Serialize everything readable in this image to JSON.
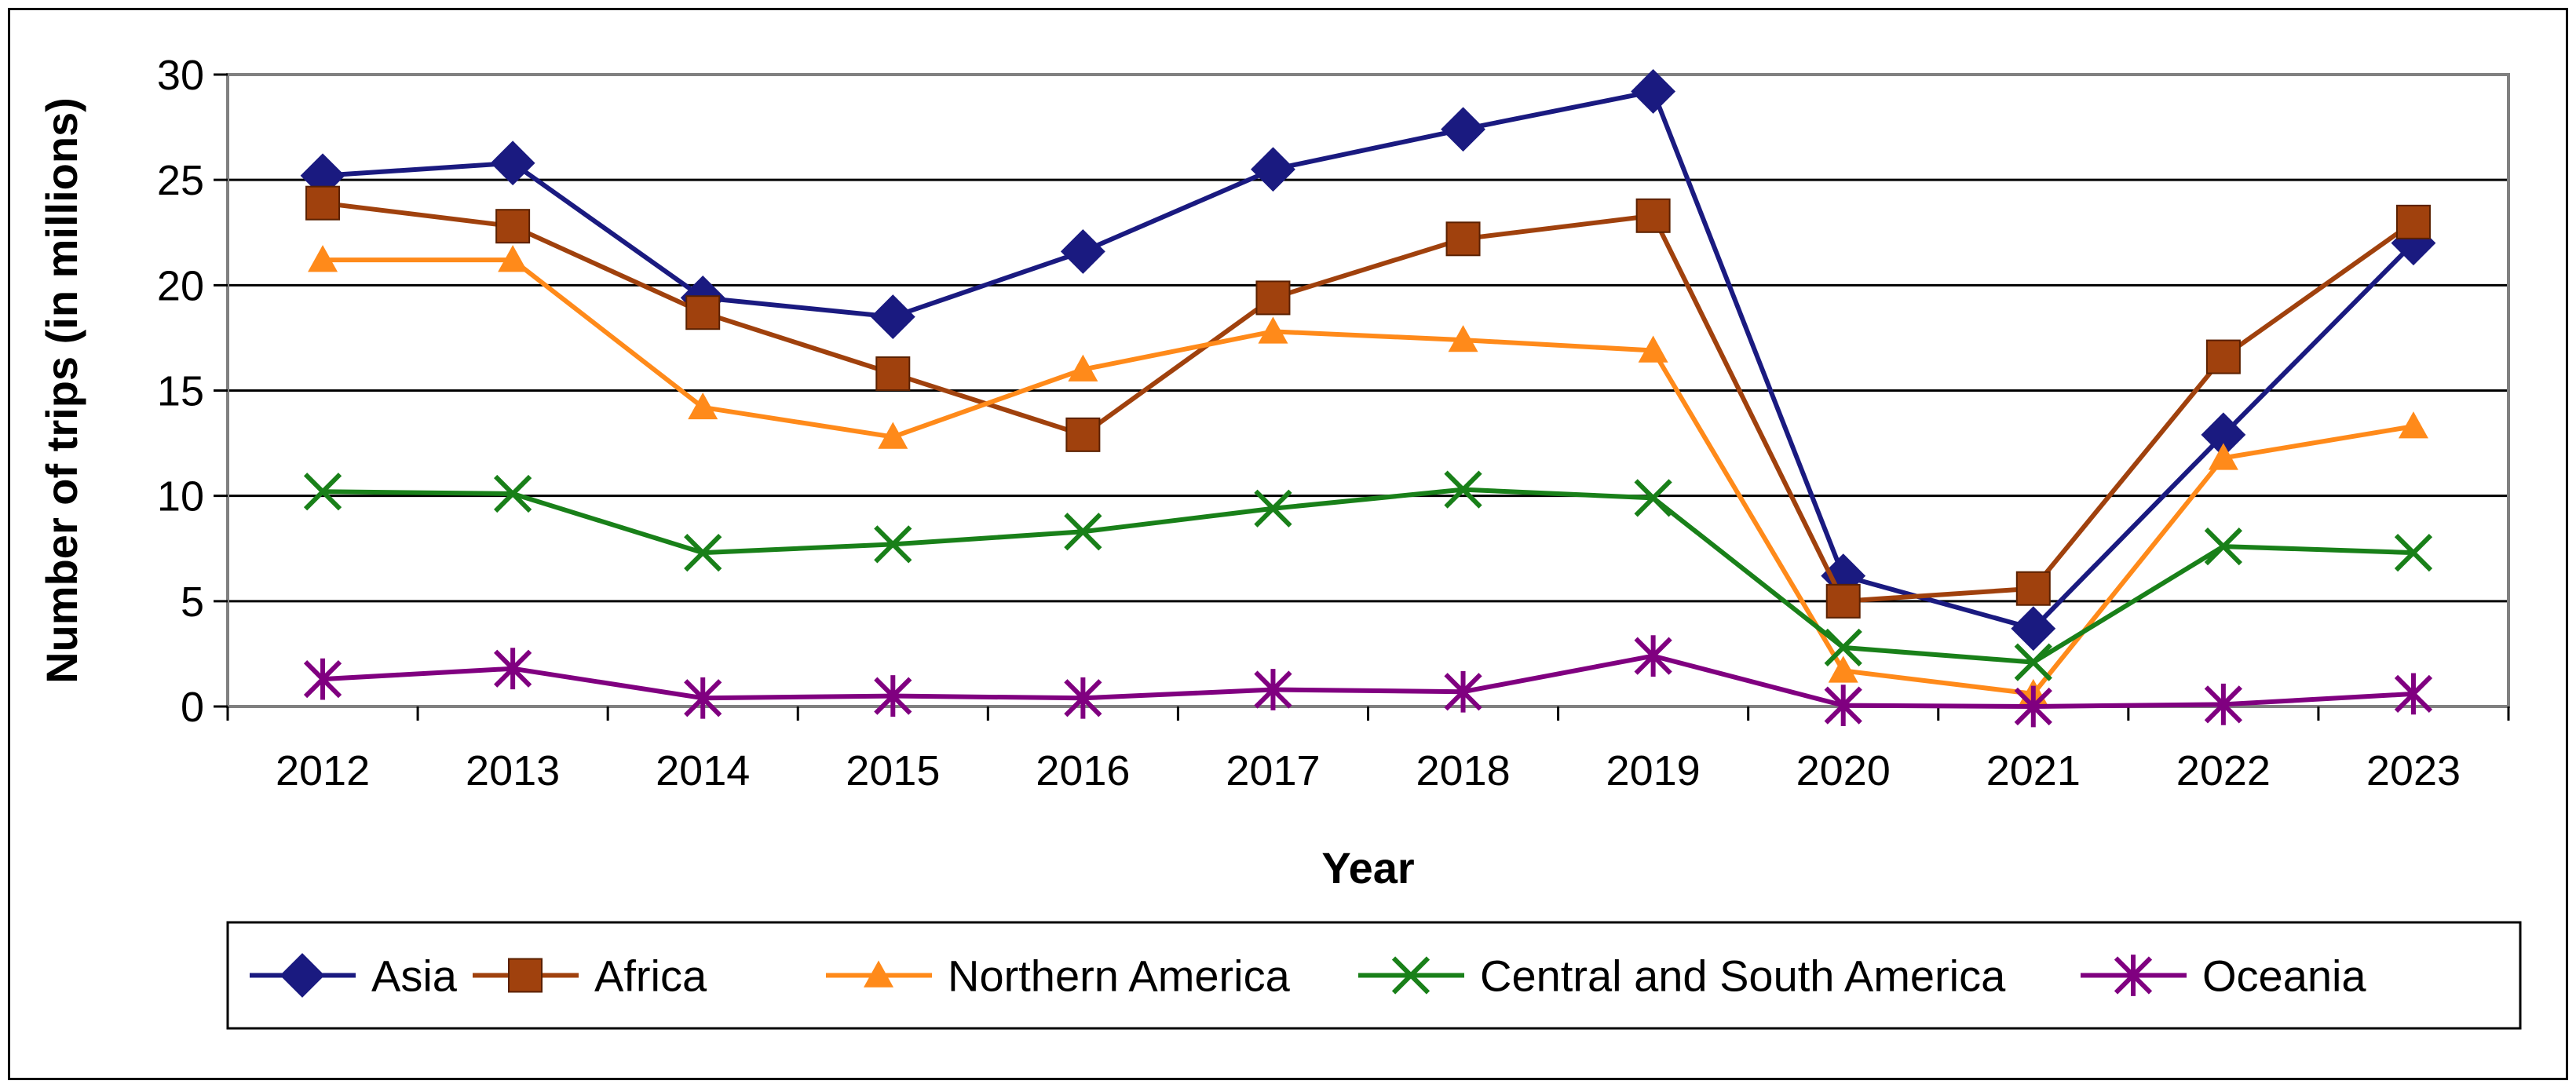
{
  "chart_data": {
    "type": "line",
    "title": "",
    "xlabel": "Year",
    "ylabel": "Number of trips (in millions)",
    "ylim": [
      0,
      30
    ],
    "yticks": [
      "0",
      "5",
      "10",
      "15",
      "20",
      "25",
      "30"
    ],
    "grid": "horizontal",
    "legend_position": "bottom",
    "categories": [
      "2012",
      "2013",
      "2014",
      "2015",
      "2016",
      "2017",
      "2018",
      "2019",
      "2020",
      "2021",
      "2022",
      "2023"
    ],
    "series": [
      {
        "name": "Asia",
        "color": "#1a1a80",
        "marker": "diamond",
        "values": [
          25.2,
          25.8,
          19.4,
          18.5,
          21.6,
          25.5,
          27.4,
          29.2,
          6.2,
          3.7,
          12.9,
          22.0
        ]
      },
      {
        "name": "Africa",
        "color": "#a0410d",
        "marker": "square",
        "values": [
          23.9,
          22.8,
          18.7,
          15.8,
          12.9,
          19.4,
          22.2,
          23.3,
          5.0,
          5.6,
          16.6,
          23.0
        ]
      },
      {
        "name": "Northern America",
        "color": "#ff8a1a",
        "marker": "triangle",
        "values": [
          21.2,
          21.2,
          14.2,
          12.8,
          16.0,
          17.8,
          17.4,
          16.9,
          1.7,
          0.6,
          11.8,
          13.3
        ]
      },
      {
        "name": "Central and South America",
        "color": "#198019",
        "marker": "x",
        "values": [
          10.2,
          10.1,
          7.3,
          7.7,
          8.3,
          9.4,
          10.3,
          9.9,
          2.8,
          2.1,
          7.6,
          7.3
        ]
      },
      {
        "name": "Oceania",
        "color": "#800080",
        "marker": "star",
        "values": [
          1.3,
          1.8,
          0.4,
          0.5,
          0.4,
          0.8,
          0.7,
          2.4,
          0.05,
          0.0,
          0.1,
          0.6
        ]
      }
    ]
  }
}
